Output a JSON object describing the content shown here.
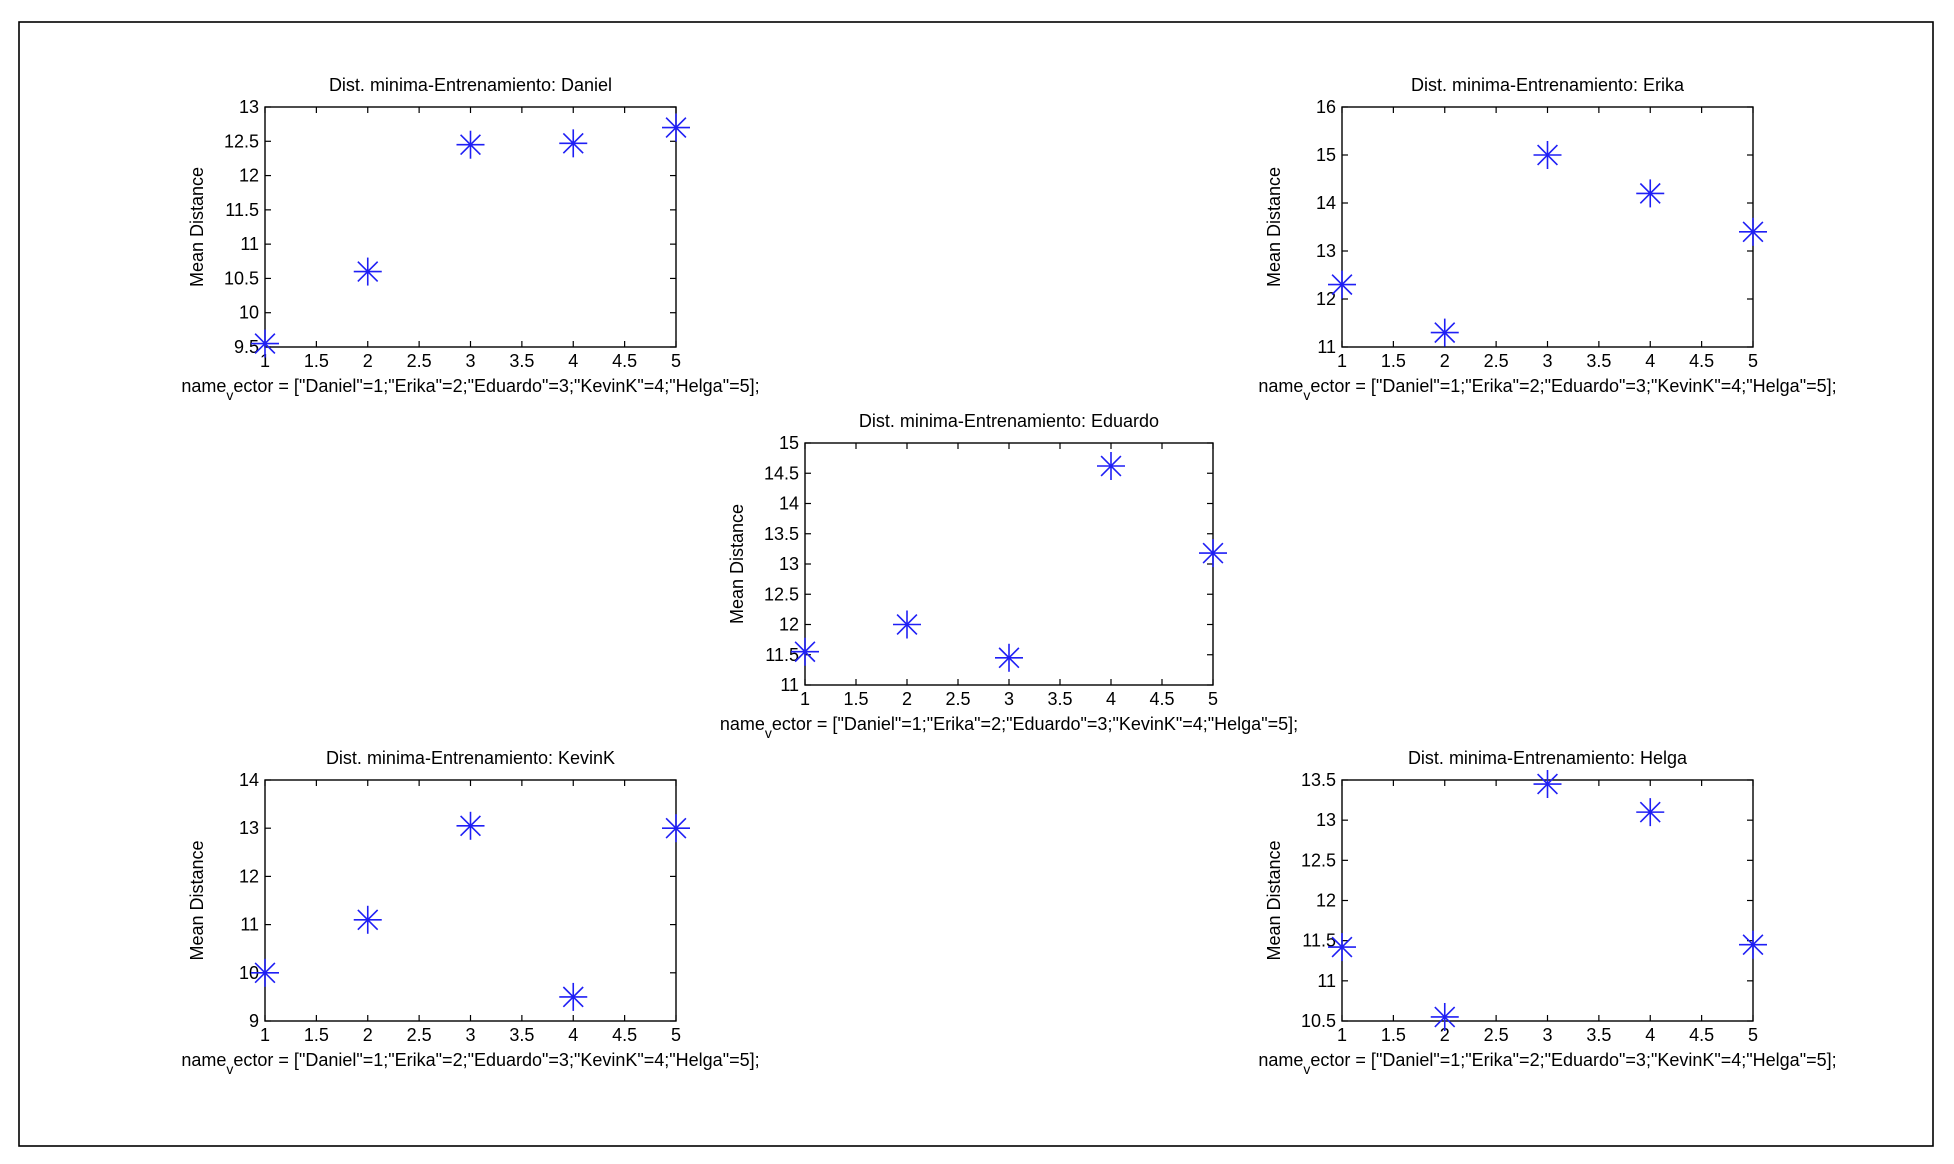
{
  "colors": {
    "marker": "#1f1ff5",
    "axes": "#000000",
    "background": "#ffffff"
  },
  "chart_data": [
    {
      "type": "scatter",
      "title": "Dist. minima-Entrenamiento: Daniel",
      "xlabel": "name_vector = [\"Daniel\"=1;\"Erika\"=2;\"Eduardo\"=3;\"KevinK\"=4;\"Helga\"=5];",
      "ylabel": "Mean Distance",
      "xlim": [
        1,
        5
      ],
      "ylim": [
        9.5,
        13
      ],
      "xticks": [
        1,
        1.5,
        2,
        2.5,
        3,
        3.5,
        4,
        4.5,
        5
      ],
      "xtick_labels": [
        "1",
        "1.5",
        "2",
        "2.5",
        "3",
        "3.5",
        "4",
        "4.5",
        "5"
      ],
      "yticks": [
        9.5,
        10,
        10.5,
        11,
        11.5,
        12,
        12.5,
        13
      ],
      "ytick_labels": [
        "9.5",
        "10",
        "10.5",
        "11",
        "11.5",
        "12",
        "12.5",
        "13"
      ],
      "marker": "asterisk",
      "x": [
        1,
        2,
        3,
        4,
        5
      ],
      "y": [
        9.55,
        10.6,
        12.45,
        12.47,
        12.7
      ]
    },
    {
      "type": "scatter",
      "title": "Dist. minima-Entrenamiento: Erika",
      "xlabel": "name_vector = [\"Daniel\"=1;\"Erika\"=2;\"Eduardo\"=3;\"KevinK\"=4;\"Helga\"=5];",
      "ylabel": "Mean Distance",
      "xlim": [
        1,
        5
      ],
      "ylim": [
        11,
        16
      ],
      "xticks": [
        1,
        1.5,
        2,
        2.5,
        3,
        3.5,
        4,
        4.5,
        5
      ],
      "xtick_labels": [
        "1",
        "1.5",
        "2",
        "2.5",
        "3",
        "3.5",
        "4",
        "4.5",
        "5"
      ],
      "yticks": [
        11,
        12,
        13,
        14,
        15,
        16
      ],
      "ytick_labels": [
        "11",
        "12",
        "13",
        "14",
        "15",
        "16"
      ],
      "marker": "asterisk",
      "x": [
        1,
        2,
        3,
        4,
        5
      ],
      "y": [
        12.3,
        11.3,
        15.0,
        14.2,
        13.4
      ]
    },
    {
      "type": "scatter",
      "title": "Dist. minima-Entrenamiento: Eduardo",
      "xlabel": "name_vector = [\"Daniel\"=1;\"Erika\"=2;\"Eduardo\"=3;\"KevinK\"=4;\"Helga\"=5];",
      "ylabel": "Mean Distance",
      "xlim": [
        1,
        5
      ],
      "ylim": [
        11,
        15
      ],
      "xticks": [
        1,
        1.5,
        2,
        2.5,
        3,
        3.5,
        4,
        4.5,
        5
      ],
      "xtick_labels": [
        "1",
        "1.5",
        "2",
        "2.5",
        "3",
        "3.5",
        "4",
        "4.5",
        "5"
      ],
      "yticks": [
        11,
        11.5,
        12,
        12.5,
        13,
        13.5,
        14,
        14.5,
        15
      ],
      "ytick_labels": [
        "11",
        "11.5",
        "12",
        "12.5",
        "13",
        "13.5",
        "14",
        "14.5",
        "15"
      ],
      "marker": "asterisk",
      "x": [
        1,
        2,
        3,
        4,
        5
      ],
      "y": [
        11.55,
        12.0,
        11.45,
        14.62,
        13.18
      ]
    },
    {
      "type": "scatter",
      "title": "Dist. minima-Entrenamiento: KevinK",
      "xlabel": "name_vector = [\"Daniel\"=1;\"Erika\"=2;\"Eduardo\"=3;\"KevinK\"=4;\"Helga\"=5];",
      "ylabel": "Mean Distance",
      "xlim": [
        1,
        5
      ],
      "ylim": [
        9,
        14
      ],
      "xticks": [
        1,
        1.5,
        2,
        2.5,
        3,
        3.5,
        4,
        4.5,
        5
      ],
      "xtick_labels": [
        "1",
        "1.5",
        "2",
        "2.5",
        "3",
        "3.5",
        "4",
        "4.5",
        "5"
      ],
      "yticks": [
        9,
        10,
        11,
        12,
        13,
        14
      ],
      "ytick_labels": [
        "9",
        "10",
        "11",
        "12",
        "13",
        "14"
      ],
      "marker": "asterisk",
      "x": [
        1,
        2,
        3,
        4,
        5
      ],
      "y": [
        10.0,
        11.1,
        13.05,
        9.5,
        13.0
      ]
    },
    {
      "type": "scatter",
      "title": "Dist. minima-Entrenamiento: Helga",
      "xlabel": "name_vector = [\"Daniel\"=1;\"Erika\"=2;\"Eduardo\"=3;\"KevinK\"=4;\"Helga\"=5];",
      "ylabel": "Mean Distance",
      "xlim": [
        1,
        5
      ],
      "ylim": [
        10.5,
        13.5
      ],
      "xticks": [
        1,
        1.5,
        2,
        2.5,
        3,
        3.5,
        4,
        4.5,
        5
      ],
      "xtick_labels": [
        "1",
        "1.5",
        "2",
        "2.5",
        "3",
        "3.5",
        "4",
        "4.5",
        "5"
      ],
      "yticks": [
        10.5,
        11,
        11.5,
        12,
        12.5,
        13,
        13.5
      ],
      "ytick_labels": [
        "10.5",
        "11",
        "11.5",
        "12",
        "12.5",
        "13",
        "13.5"
      ],
      "marker": "asterisk",
      "x": [
        1,
        2,
        3,
        4,
        5
      ],
      "y": [
        11.42,
        10.55,
        13.45,
        13.1,
        11.45
      ]
    }
  ]
}
